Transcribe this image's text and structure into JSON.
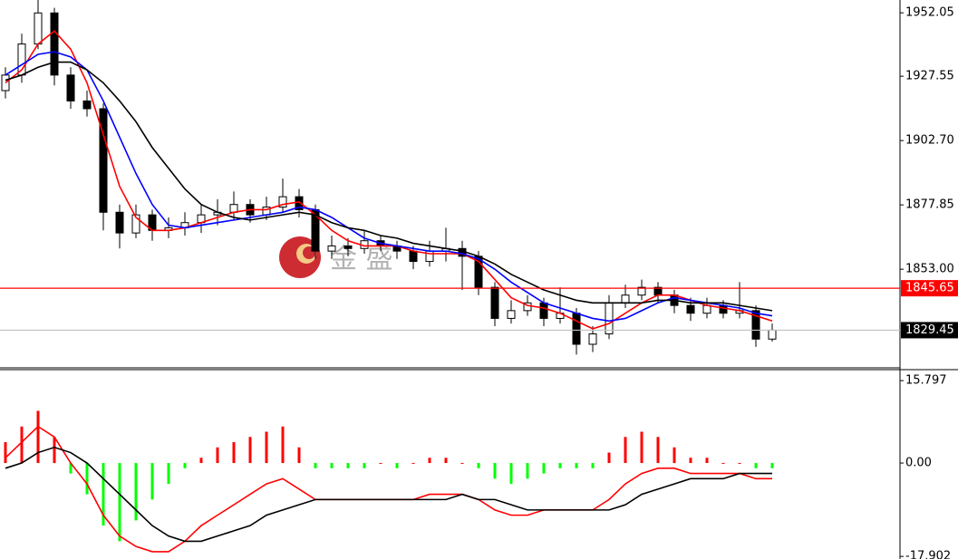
{
  "chart_data": [
    {
      "type": "candlestick",
      "watermark": "金 盛",
      "ylim": [
        1814.9,
        1957.0
      ],
      "yticks": [
        1952.05,
        1927.55,
        {
          "value": 1902.7,
          "label": "1902.70"
        },
        1877.85,
        {
          "value": 1853,
          "label": "1853.00"
        }
      ],
      "up_color": "#ffffff",
      "down_color": "#000000",
      "candles": [
        [
          1922,
          1931,
          1919,
          1928
        ],
        [
          1928,
          1944,
          1925,
          1940
        ],
        [
          1940,
          1957,
          1938,
          1952
        ],
        [
          1952,
          1954,
          1924,
          1928
        ],
        [
          1928,
          1931,
          1915,
          1918
        ],
        [
          1918,
          1922,
          1912,
          1915
        ],
        [
          1915,
          1917,
          1868,
          1875
        ],
        [
          1875,
          1878,
          1861,
          1867
        ],
        [
          1867,
          1878,
          1865,
          1874
        ],
        [
          1874,
          1876,
          1864,
          1868
        ],
        [
          1868,
          1873,
          1865,
          1869
        ],
        [
          1869,
          1875,
          1866,
          1871
        ],
        [
          1871,
          1878,
          1867,
          1874
        ],
        [
          1874,
          1880,
          1870,
          1875
        ],
        [
          1875,
          1883,
          1872,
          1878
        ],
        [
          1878,
          1880,
          1871,
          1874
        ],
        [
          1874,
          1881,
          1872,
          1877
        ],
        [
          1877,
          1888,
          1875,
          1881
        ],
        [
          1881,
          1884,
          1873,
          1876
        ],
        [
          1876,
          1878,
          1857,
          1860
        ],
        [
          1860,
          1866,
          1857,
          1862
        ],
        [
          1862,
          1865,
          1858,
          1861
        ],
        [
          1861,
          1868,
          1859,
          1864
        ],
        [
          1864,
          1866,
          1860,
          1862
        ],
        [
          1862,
          1864,
          1857,
          1860
        ],
        [
          1860,
          1862,
          1853,
          1856
        ],
        [
          1856,
          1864,
          1854,
          1860
        ],
        [
          1860,
          1869,
          1856,
          1861
        ],
        [
          1861,
          1864,
          1845,
          1858
        ],
        [
          1858,
          1860,
          1843,
          1846
        ],
        [
          1846,
          1848,
          1831,
          1834
        ],
        [
          1834,
          1841,
          1832,
          1837
        ],
        [
          1837,
          1843,
          1835,
          1840
        ],
        [
          1840,
          1842,
          1831,
          1834
        ],
        [
          1834,
          1846,
          1832,
          1836
        ],
        [
          1836,
          1838,
          1820,
          1824
        ],
        [
          1824,
          1831,
          1821,
          1828
        ],
        [
          1828,
          1843,
          1826,
          1840
        ],
        [
          1840,
          1847,
          1838,
          1843
        ],
        [
          1843,
          1849,
          1841,
          1846
        ],
        [
          1846,
          1848,
          1840,
          1843
        ],
        [
          1843,
          1845,
          1836,
          1839
        ],
        [
          1839,
          1842,
          1833,
          1836
        ],
        [
          1836,
          1842,
          1834,
          1839
        ],
        [
          1839,
          1841,
          1834,
          1836
        ],
        [
          1836,
          1848,
          1834,
          1837
        ],
        [
          1837,
          1839,
          1823,
          1826
        ],
        [
          1826,
          1832,
          1825,
          1829.45
        ]
      ],
      "lines": [
        {
          "color": "#ff0000",
          "values": [
            1925,
            1930,
            1940,
            1945,
            1938,
            1925,
            1905,
            1885,
            1873,
            1868,
            1868,
            1869,
            1871,
            1873,
            1875,
            1876,
            1876,
            1878,
            1879,
            1874,
            1868,
            1864,
            1862,
            1862,
            1862,
            1860,
            1859,
            1859,
            1859,
            1856,
            1849,
            1842,
            1839,
            1838,
            1836,
            1833,
            1830,
            1832,
            1836,
            1840,
            1843,
            1843,
            1841,
            1839,
            1838,
            1837,
            1835,
            1833
          ]
        },
        {
          "color": "#0000ff",
          "values": [
            1928,
            1932,
            1936,
            1937,
            1935,
            1930,
            1918,
            1904,
            1890,
            1878,
            1870,
            1869,
            1870,
            1871,
            1872,
            1873,
            1874,
            1875,
            1877,
            1876,
            1873,
            1869,
            1865,
            1863,
            1862,
            1861,
            1860,
            1860,
            1859,
            1857,
            1853,
            1848,
            1844,
            1840,
            1838,
            1836,
            1834,
            1833,
            1834,
            1837,
            1840,
            1842,
            1841,
            1840,
            1839,
            1838,
            1836,
            1835
          ]
        },
        {
          "color": "#000000",
          "values": [
            1926,
            1928,
            1931,
            1933,
            1933,
            1930,
            1925,
            1918,
            1910,
            1900,
            1892,
            1884,
            1878,
            1875,
            1873,
            1872,
            1873,
            1874,
            1875,
            1874,
            1871,
            1869,
            1868,
            1866,
            1865,
            1863,
            1862,
            1861,
            1860,
            1858,
            1855,
            1851,
            1848,
            1845,
            1843,
            1841,
            1840,
            1840,
            1840,
            1840,
            1841,
            1841,
            1840,
            1840,
            1840,
            1839,
            1838,
            1837
          ]
        }
      ],
      "price_lines": [
        {
          "value": 1845.65,
          "color": "#ff0000"
        },
        {
          "value": 1829.45,
          "color": "#000000",
          "line_color": "#c0c0c0"
        }
      ]
    },
    {
      "type": "macd",
      "ylim": [
        -18.4,
        17.9
      ],
      "yticks": [
        15.797,
        {
          "value": 0,
          "label": "0.00"
        },
        -17.902
      ],
      "pos_color": "#ff0000",
      "neg_color": "#00ff00",
      "histogram": [
        4,
        7,
        10,
        5,
        -2,
        -6,
        -12,
        -15,
        -11,
        -7,
        -4,
        -1,
        1,
        3,
        4,
        5,
        6,
        7,
        3,
        -1,
        -1,
        -1,
        -1,
        0,
        -1,
        0,
        1,
        1,
        0,
        -1,
        -3,
        -4,
        -3,
        -2,
        -1,
        -1,
        -1,
        2,
        5,
        6,
        5,
        3,
        1,
        1,
        0,
        0,
        -1,
        -1
      ],
      "lines": [
        {
          "color": "#ff0000",
          "values": [
            1,
            4,
            7,
            5,
            0,
            -4,
            -10,
            -14,
            -16,
            -17,
            -17,
            -15,
            -12,
            -10,
            -8,
            -6,
            -4,
            -3,
            -5,
            -7,
            -7,
            -7,
            -7,
            -7,
            -7,
            -7,
            -6,
            -6,
            -6,
            -7,
            -9,
            -10,
            -10,
            -9,
            -9,
            -9,
            -9,
            -7,
            -4,
            -2,
            -1,
            -1,
            -2,
            -2,
            -2,
            -2,
            -3,
            -3
          ]
        },
        {
          "color": "#000000",
          "values": [
            -1,
            0,
            2,
            3,
            2,
            0,
            -3,
            -6,
            -9,
            -12,
            -14,
            -15,
            -15,
            -14,
            -13,
            -12,
            -10,
            -9,
            -8,
            -7,
            -7,
            -7,
            -7,
            -7,
            -7,
            -7,
            -7,
            -7,
            -6,
            -7,
            -7,
            -8,
            -9,
            -9,
            -9,
            -9,
            -9,
            -9,
            -8,
            -6,
            -5,
            -4,
            -3,
            -3,
            -3,
            -2,
            -2,
            -2
          ]
        }
      ]
    }
  ]
}
